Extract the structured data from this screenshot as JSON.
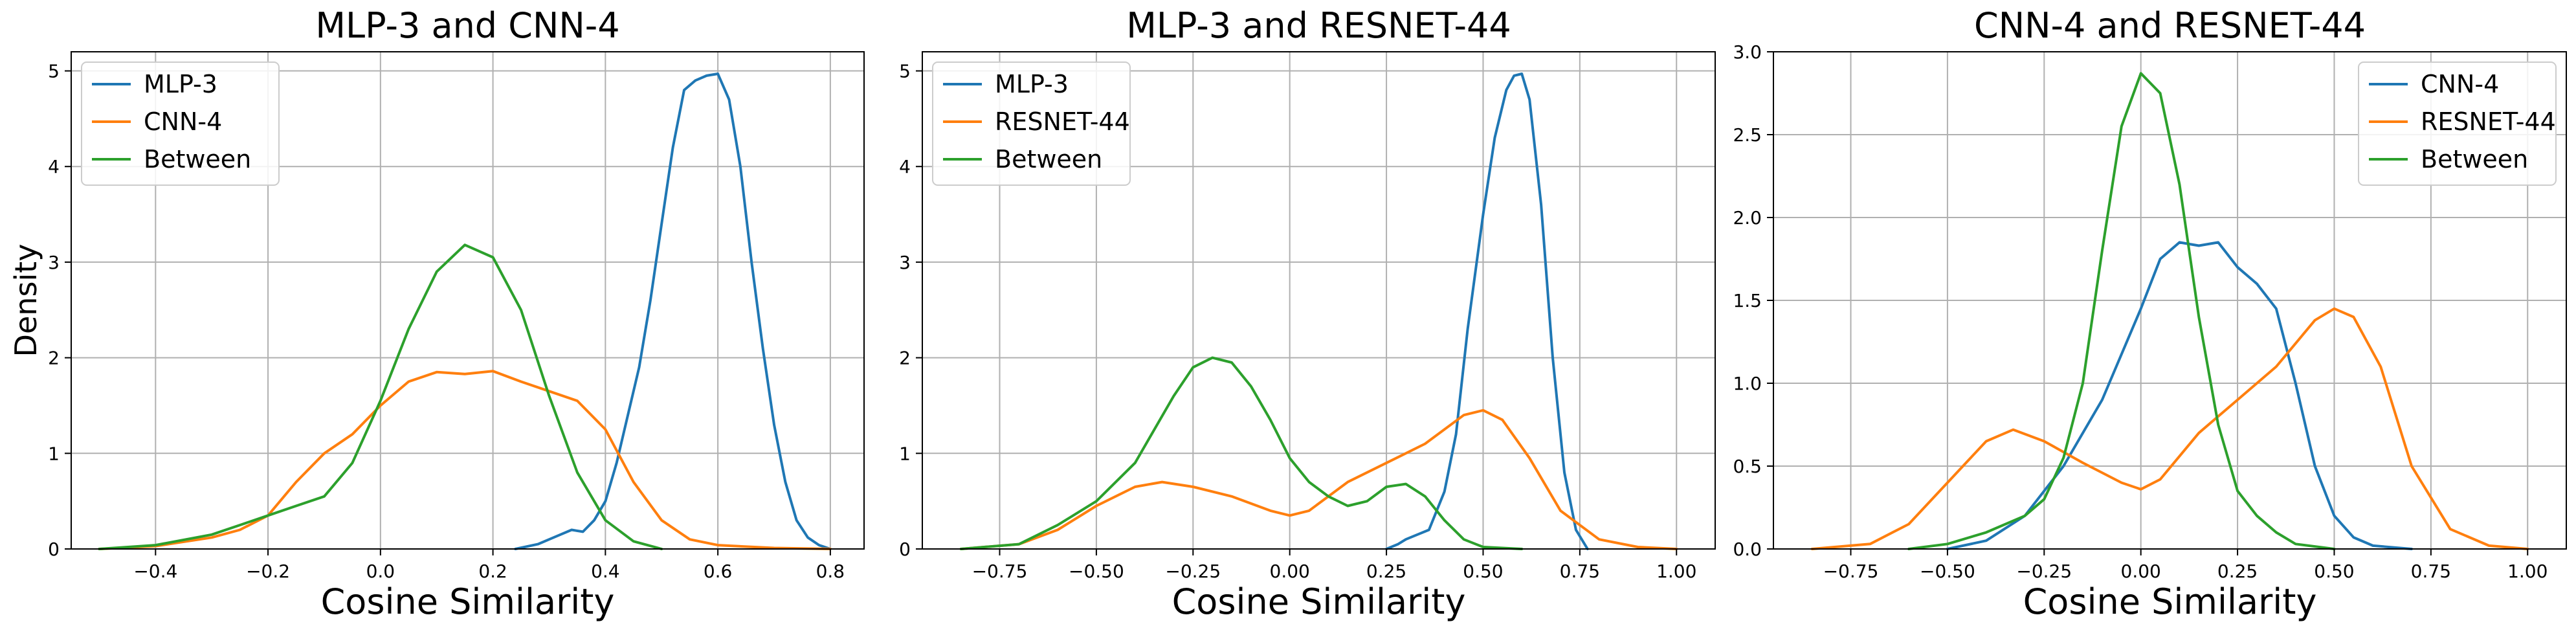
{
  "colors": {
    "series1": "#1f77b4",
    "series2": "#ff7f0e",
    "between": "#2ca02c",
    "grid": "#b0b0b0",
    "axis": "#000000"
  },
  "chart_data": [
    {
      "type": "line",
      "title": "MLP-3 and CNN-4",
      "xlabel": "Cosine Similarity",
      "ylabel": "Density",
      "xlim": [
        -0.55,
        0.86
      ],
      "ylim": [
        0,
        5.2
      ],
      "xticks": [
        -0.4,
        -0.2,
        0.0,
        0.2,
        0.4,
        0.6,
        0.8
      ],
      "xtick_labels": [
        "−0.4",
        "−0.2",
        "0.0",
        "0.2",
        "0.4",
        "0.6",
        "0.8"
      ],
      "yticks": [
        0,
        1,
        2,
        3,
        4,
        5
      ],
      "ytick_labels": [
        "0",
        "1",
        "2",
        "3",
        "4",
        "5"
      ],
      "grid": true,
      "legend": "upper left",
      "series": [
        {
          "name": "MLP-3",
          "color": "#1f77b4",
          "x": [
            0.24,
            0.28,
            0.3,
            0.32,
            0.34,
            0.36,
            0.38,
            0.4,
            0.42,
            0.44,
            0.46,
            0.48,
            0.5,
            0.52,
            0.54,
            0.56,
            0.58,
            0.6,
            0.62,
            0.64,
            0.66,
            0.68,
            0.7,
            0.72,
            0.74,
            0.76,
            0.78,
            0.8
          ],
          "y": [
            0,
            0.05,
            0.1,
            0.15,
            0.2,
            0.18,
            0.3,
            0.5,
            0.9,
            1.4,
            1.9,
            2.6,
            3.4,
            4.2,
            4.8,
            4.9,
            4.95,
            4.97,
            4.7,
            4.0,
            3.0,
            2.1,
            1.3,
            0.7,
            0.3,
            0.12,
            0.04,
            0
          ]
        },
        {
          "name": "CNN-4",
          "color": "#ff7f0e",
          "x": [
            -0.5,
            -0.4,
            -0.3,
            -0.25,
            -0.2,
            -0.15,
            -0.1,
            -0.05,
            0.0,
            0.05,
            0.1,
            0.15,
            0.2,
            0.25,
            0.3,
            0.35,
            0.4,
            0.45,
            0.5,
            0.55,
            0.6,
            0.7,
            0.8
          ],
          "y": [
            0,
            0.03,
            0.12,
            0.2,
            0.35,
            0.7,
            1.0,
            1.2,
            1.5,
            1.75,
            1.85,
            1.83,
            1.86,
            1.75,
            1.65,
            1.55,
            1.25,
            0.7,
            0.3,
            0.1,
            0.04,
            0.01,
            0
          ]
        },
        {
          "name": "Between",
          "color": "#2ca02c",
          "x": [
            -0.5,
            -0.4,
            -0.3,
            -0.25,
            -0.2,
            -0.15,
            -0.1,
            -0.05,
            0.0,
            0.05,
            0.1,
            0.15,
            0.2,
            0.25,
            0.3,
            0.35,
            0.4,
            0.45,
            0.5
          ],
          "y": [
            0,
            0.04,
            0.15,
            0.25,
            0.35,
            0.45,
            0.55,
            0.9,
            1.55,
            2.3,
            2.9,
            3.18,
            3.05,
            2.5,
            1.6,
            0.8,
            0.3,
            0.08,
            0
          ]
        }
      ]
    },
    {
      "type": "line",
      "title": "MLP-3 and RESNET-44",
      "xlabel": "Cosine Similarity",
      "ylabel": "",
      "xlim": [
        -0.95,
        1.1
      ],
      "ylim": [
        0,
        5.2
      ],
      "xticks": [
        -0.75,
        -0.5,
        -0.25,
        0.0,
        0.25,
        0.5,
        0.75,
        1.0
      ],
      "xtick_labels": [
        "−0.75",
        "−0.50",
        "−0.25",
        "0.00",
        "0.25",
        "0.50",
        "0.75",
        "1.00"
      ],
      "yticks": [
        0,
        1,
        2,
        3,
        4,
        5
      ],
      "ytick_labels": [
        "0",
        "1",
        "2",
        "3",
        "4",
        "5"
      ],
      "grid": true,
      "legend": "upper left",
      "series": [
        {
          "name": "MLP-3",
          "color": "#1f77b4",
          "x": [
            0.25,
            0.28,
            0.3,
            0.33,
            0.36,
            0.4,
            0.43,
            0.46,
            0.5,
            0.53,
            0.56,
            0.58,
            0.6,
            0.62,
            0.65,
            0.68,
            0.71,
            0.74,
            0.77
          ],
          "y": [
            0,
            0.05,
            0.1,
            0.15,
            0.2,
            0.6,
            1.2,
            2.3,
            3.5,
            4.3,
            4.8,
            4.95,
            4.97,
            4.7,
            3.6,
            2.0,
            0.8,
            0.2,
            0
          ]
        },
        {
          "name": "RESNET-44",
          "color": "#ff7f0e",
          "x": [
            -0.85,
            -0.7,
            -0.6,
            -0.5,
            -0.4,
            -0.33,
            -0.25,
            -0.15,
            -0.05,
            0.0,
            0.05,
            0.15,
            0.25,
            0.35,
            0.45,
            0.5,
            0.55,
            0.62,
            0.7,
            0.8,
            0.9,
            1.0
          ],
          "y": [
            0,
            0.05,
            0.2,
            0.45,
            0.65,
            0.7,
            0.65,
            0.55,
            0.4,
            0.35,
            0.4,
            0.7,
            0.9,
            1.1,
            1.4,
            1.45,
            1.35,
            0.95,
            0.4,
            0.1,
            0.02,
            0
          ]
        },
        {
          "name": "Between",
          "color": "#2ca02c",
          "x": [
            -0.85,
            -0.7,
            -0.6,
            -0.5,
            -0.4,
            -0.3,
            -0.25,
            -0.2,
            -0.15,
            -0.1,
            -0.05,
            0.0,
            0.05,
            0.1,
            0.15,
            0.2,
            0.25,
            0.3,
            0.35,
            0.4,
            0.45,
            0.5,
            0.6
          ],
          "y": [
            0,
            0.05,
            0.25,
            0.5,
            0.9,
            1.6,
            1.9,
            2.0,
            1.95,
            1.7,
            1.35,
            0.95,
            0.7,
            0.55,
            0.45,
            0.5,
            0.65,
            0.68,
            0.55,
            0.3,
            0.1,
            0.02,
            0
          ]
        }
      ]
    },
    {
      "type": "line",
      "title": "CNN-4 and RESNET-44",
      "xlabel": "Cosine Similarity",
      "ylabel": "",
      "xlim": [
        -0.95,
        1.1
      ],
      "ylim": [
        0,
        3.0
      ],
      "xticks": [
        -0.75,
        -0.5,
        -0.25,
        0.0,
        0.25,
        0.5,
        0.75,
        1.0
      ],
      "xtick_labels": [
        "−0.75",
        "−0.50",
        "−0.25",
        "0.00",
        "0.25",
        "0.50",
        "0.75",
        "1.00"
      ],
      "yticks": [
        0.0,
        0.5,
        1.0,
        1.5,
        2.0,
        2.5,
        3.0
      ],
      "ytick_labels": [
        "0.0",
        "0.5",
        "1.0",
        "1.5",
        "2.0",
        "2.5",
        "3.0"
      ],
      "grid": true,
      "legend": "upper right",
      "series": [
        {
          "name": "CNN-4",
          "color": "#1f77b4",
          "x": [
            -0.5,
            -0.4,
            -0.3,
            -0.2,
            -0.1,
            0.0,
            0.05,
            0.1,
            0.15,
            0.2,
            0.25,
            0.3,
            0.35,
            0.4,
            0.45,
            0.5,
            0.55,
            0.6,
            0.7
          ],
          "y": [
            0,
            0.05,
            0.2,
            0.5,
            0.9,
            1.45,
            1.75,
            1.85,
            1.83,
            1.85,
            1.7,
            1.6,
            1.45,
            1.0,
            0.5,
            0.2,
            0.07,
            0.02,
            0
          ]
        },
        {
          "name": "RESNET-44",
          "color": "#ff7f0e",
          "x": [
            -0.85,
            -0.7,
            -0.6,
            -0.5,
            -0.4,
            -0.33,
            -0.25,
            -0.15,
            -0.05,
            0.0,
            0.05,
            0.15,
            0.25,
            0.35,
            0.45,
            0.5,
            0.55,
            0.62,
            0.7,
            0.8,
            0.9,
            1.0
          ],
          "y": [
            0,
            0.03,
            0.15,
            0.4,
            0.65,
            0.72,
            0.65,
            0.52,
            0.4,
            0.36,
            0.42,
            0.7,
            0.9,
            1.1,
            1.38,
            1.45,
            1.4,
            1.1,
            0.5,
            0.12,
            0.02,
            0
          ]
        },
        {
          "name": "Between",
          "color": "#2ca02c",
          "x": [
            -0.6,
            -0.5,
            -0.4,
            -0.3,
            -0.25,
            -0.2,
            -0.15,
            -0.1,
            -0.05,
            0.0,
            0.05,
            0.1,
            0.15,
            0.2,
            0.25,
            0.3,
            0.35,
            0.4,
            0.5
          ],
          "y": [
            0,
            0.03,
            0.1,
            0.2,
            0.3,
            0.55,
            1.0,
            1.8,
            2.55,
            2.87,
            2.75,
            2.2,
            1.4,
            0.75,
            0.35,
            0.2,
            0.1,
            0.03,
            0
          ]
        }
      ]
    }
  ]
}
